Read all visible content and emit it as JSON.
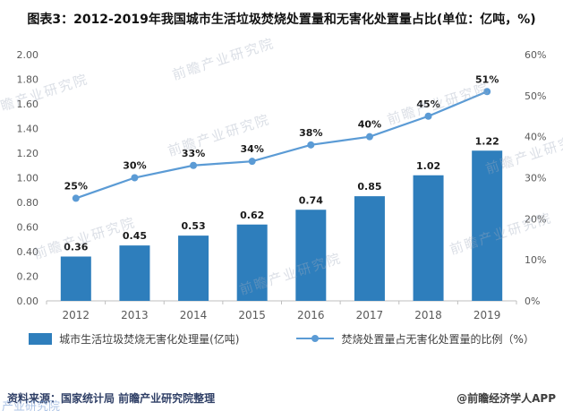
{
  "title": "图表3：2012-2019年我国城市生活垃圾焚烧处置量和无害化处置量占比(单位：亿吨，%)",
  "chart_data": {
    "type": "bar+line",
    "categories": [
      "2012",
      "2013",
      "2014",
      "2015",
      "2016",
      "2017",
      "2018",
      "2019"
    ],
    "series": [
      {
        "name": "城市生活垃圾焚烧无害化处理量(亿吨)",
        "type": "bar",
        "axis": "left",
        "color": "#2e7ebc",
        "values": [
          0.36,
          0.45,
          0.53,
          0.62,
          0.74,
          0.85,
          1.02,
          1.22
        ]
      },
      {
        "name": "焚烧处置量占无害化处置量的比例（%）",
        "type": "line",
        "axis": "right",
        "color": "#5b9bd5",
        "values": [
          25,
          30,
          33,
          34,
          38,
          40,
          45,
          51
        ]
      }
    ],
    "left_axis": {
      "min": 0,
      "max": 2,
      "step": 0.2,
      "ticks": [
        "0.00",
        "0.20",
        "0.40",
        "0.60",
        "0.80",
        "1.00",
        "1.20",
        "1.40",
        "1.60",
        "1.80",
        "2.00"
      ]
    },
    "right_axis": {
      "min": 0,
      "max": 60,
      "step": 10,
      "ticks": [
        "0%",
        "10%",
        "20%",
        "30%",
        "40%",
        "50%",
        "60%"
      ]
    },
    "grid": false,
    "legend_position": "bottom"
  },
  "footer": {
    "source": "资料来源：国家统计局 前瞻产业研究院整理",
    "credit": "@前瞻经济学人APP"
  },
  "watermark": {
    "text": "前瞻产业研究院",
    "corner_text": "产业研究院"
  }
}
